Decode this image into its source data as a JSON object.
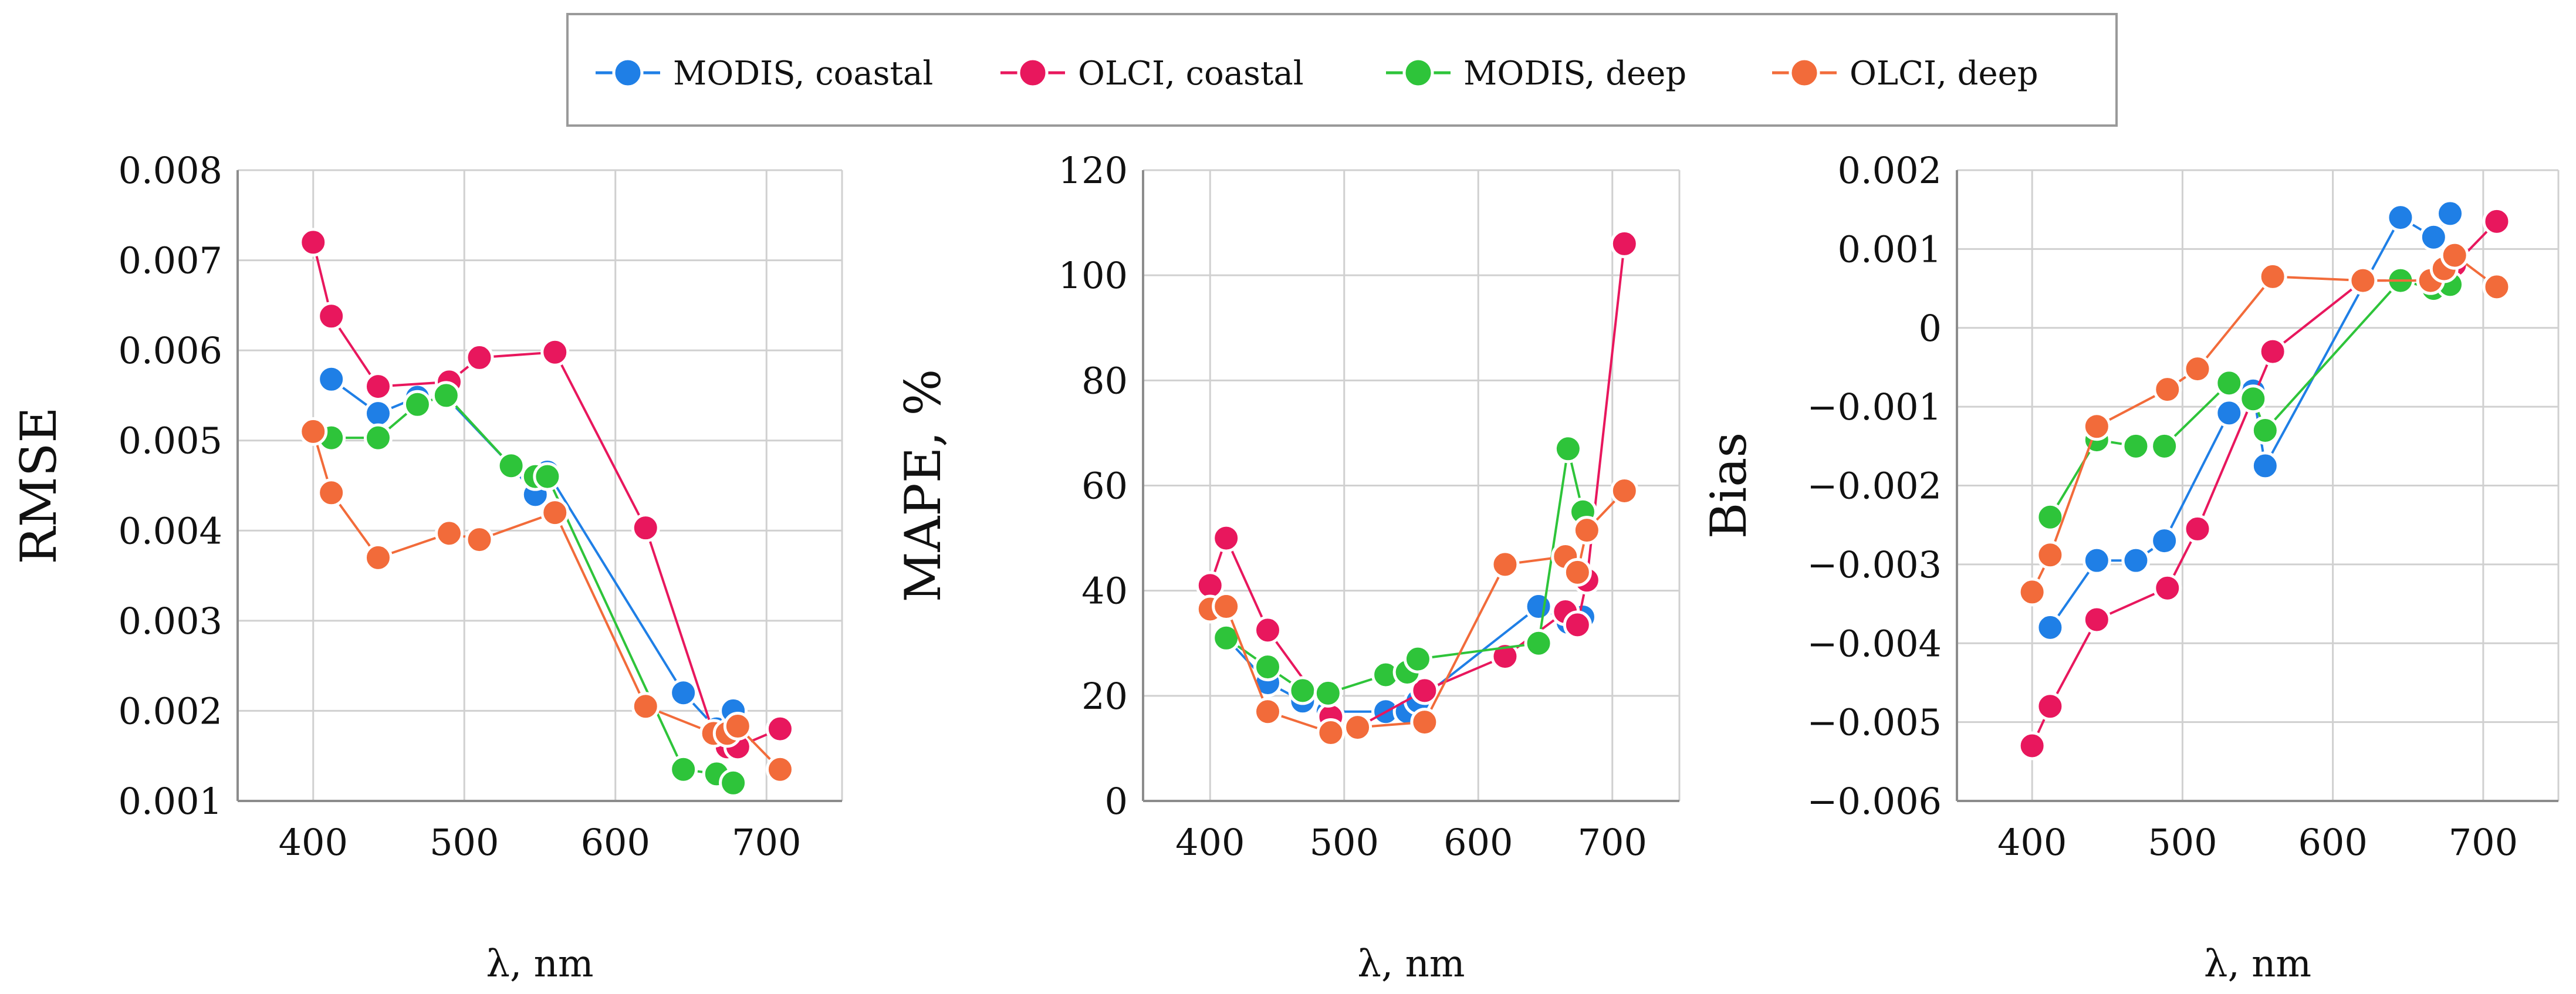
{
  "chart_data": [
    {
      "type": "line",
      "title": "",
      "xlabel": "λ, nm",
      "ylabel": "RMSE",
      "xlim": [
        350,
        750
      ],
      "ylim": [
        0.001,
        0.008
      ],
      "xticks": [
        400,
        500,
        600,
        700
      ],
      "xtick_labels": [
        "400",
        "500",
        "600",
        "700"
      ],
      "yticks": [
        0.001,
        0.002,
        0.003,
        0.004,
        0.005,
        0.006,
        0.007,
        0.008
      ],
      "ytick_labels": [
        "0.001",
        "0.002",
        "0.003",
        "0.004",
        "0.005",
        "0.006",
        "0.007",
        "0.008"
      ],
      "grid": true,
      "series": [
        {
          "name": "MODIS, coastal",
          "color": "#1f7fe6",
          "x": [
            412,
            443,
            469,
            488,
            531,
            547,
            555,
            645,
            667,
            678
          ],
          "y": [
            0.00568,
            0.0053,
            0.00548,
            0.00548,
            0.00472,
            0.0044,
            0.00465,
            0.0022,
            0.0018,
            0.002
          ]
        },
        {
          "name": "OLCI, coastal",
          "color": "#e8175d",
          "x": [
            400,
            412,
            443,
            490,
            510,
            560,
            620,
            665,
            674,
            681,
            709
          ],
          "y": [
            0.0072,
            0.00638,
            0.0056,
            0.00565,
            0.00592,
            0.00598,
            0.00403,
            0.00175,
            0.0016,
            0.0016,
            0.0018
          ]
        },
        {
          "name": "MODIS, deep",
          "color": "#2ec43a",
          "x": [
            412,
            443,
            469,
            488,
            531,
            547,
            555,
            645,
            667,
            678
          ],
          "y": [
            0.00503,
            0.00503,
            0.0054,
            0.0055,
            0.00472,
            0.0046,
            0.0046,
            0.00135,
            0.0013,
            0.0012
          ]
        },
        {
          "name": "OLCI, deep",
          "color": "#f26b3a",
          "x": [
            400,
            412,
            443,
            490,
            510,
            560,
            620,
            665,
            674,
            681,
            709
          ],
          "y": [
            0.0051,
            0.00442,
            0.0037,
            0.00397,
            0.0039,
            0.0042,
            0.00205,
            0.00175,
            0.00175,
            0.00183,
            0.00135
          ]
        }
      ]
    },
    {
      "type": "line",
      "title": "",
      "xlabel": "λ, nm",
      "ylabel": "MAPE, %",
      "xlim": [
        350,
        750
      ],
      "ylim": [
        0,
        120
      ],
      "xticks": [
        400,
        500,
        600,
        700
      ],
      "xtick_labels": [
        "400",
        "500",
        "600",
        "700"
      ],
      "yticks": [
        0,
        20,
        40,
        60,
        80,
        100,
        120
      ],
      "ytick_labels": [
        "0",
        "20",
        "40",
        "60",
        "80",
        "100",
        "120"
      ],
      "grid": true,
      "series": [
        {
          "name": "MODIS, coastal",
          "color": "#1f7fe6",
          "x": [
            412,
            443,
            469,
            488,
            531,
            547,
            555,
            645,
            667,
            678
          ],
          "y": [
            31,
            22.5,
            19,
            17,
            17,
            17,
            19,
            37,
            34,
            35
          ]
        },
        {
          "name": "OLCI, coastal",
          "color": "#e8175d",
          "x": [
            400,
            412,
            443,
            490,
            510,
            560,
            620,
            665,
            674,
            681,
            709
          ],
          "y": [
            41,
            50,
            32.5,
            16,
            14,
            21,
            27.5,
            36,
            33.5,
            42,
            106
          ]
        },
        {
          "name": "MODIS, deep",
          "color": "#2ec43a",
          "x": [
            412,
            443,
            469,
            488,
            531,
            547,
            555,
            645,
            667,
            678
          ],
          "y": [
            31,
            25.5,
            21,
            20.5,
            24,
            24.5,
            27,
            30,
            67,
            55
          ]
        },
        {
          "name": "OLCI, deep",
          "color": "#f26b3a",
          "x": [
            400,
            412,
            443,
            490,
            510,
            560,
            620,
            665,
            674,
            681,
            709
          ],
          "y": [
            36.5,
            37,
            17,
            13,
            14,
            15,
            45,
            46.5,
            43.5,
            51.5,
            59
          ]
        }
      ]
    },
    {
      "type": "line",
      "title": "",
      "xlabel": "λ, nm",
      "ylabel": "Bias",
      "xlim": [
        350,
        750
      ],
      "ylim": [
        -0.006,
        0.002
      ],
      "xticks": [
        400,
        500,
        600,
        700
      ],
      "xtick_labels": [
        "400",
        "500",
        "600",
        "700"
      ],
      "yticks": [
        -0.006,
        -0.005,
        -0.004,
        -0.003,
        -0.002,
        -0.001,
        0,
        0.001,
        0.002
      ],
      "ytick_labels": [
        "−0.006",
        "−0.005",
        "−0.004",
        "−0.003",
        "−0.002",
        "−0.001",
        "0",
        "0.001",
        "0.002"
      ],
      "grid": true,
      "series": [
        {
          "name": "MODIS, coastal",
          "color": "#1f7fe6",
          "x": [
            412,
            443,
            469,
            488,
            531,
            547,
            555,
            645,
            667,
            678
          ],
          "y": [
            -0.0038,
            -0.00295,
            -0.00295,
            -0.0027,
            -0.00108,
            -0.0008,
            -0.00175,
            0.0014,
            0.00115,
            0.00145
          ]
        },
        {
          "name": "OLCI, coastal",
          "color": "#e8175d",
          "x": [
            400,
            412,
            443,
            490,
            510,
            560,
            620,
            665,
            674,
            681,
            709
          ],
          "y": [
            -0.0053,
            -0.0048,
            -0.0037,
            -0.0033,
            -0.00255,
            -0.0003,
            0.0006,
            0.0006,
            0.0007,
            0.0008,
            0.00135
          ]
        },
        {
          "name": "MODIS, deep",
          "color": "#2ec43a",
          "x": [
            412,
            443,
            469,
            488,
            531,
            547,
            555,
            645,
            667,
            678
          ],
          "y": [
            -0.0024,
            -0.00142,
            -0.0015,
            -0.0015,
            -0.0007,
            -0.0009,
            -0.0013,
            0.0006,
            0.0005,
            0.00055
          ]
        },
        {
          "name": "OLCI, deep",
          "color": "#f26b3a",
          "x": [
            400,
            412,
            443,
            490,
            510,
            560,
            620,
            665,
            674,
            681,
            709
          ],
          "y": [
            -0.00335,
            -0.00288,
            -0.00125,
            -0.00078,
            -0.00052,
            0.00065,
            0.0006,
            0.0006,
            0.00075,
            0.00092,
            0.00052
          ]
        }
      ]
    }
  ],
  "legend": {
    "placement": "top-center",
    "items": [
      {
        "label": "MODIS, coastal",
        "color": "#1f7fe6"
      },
      {
        "label": "OLCI, coastal",
        "color": "#e8175d"
      },
      {
        "label": "MODIS, deep",
        "color": "#2ec43a"
      },
      {
        "label": "OLCI, deep",
        "color": "#f26b3a"
      }
    ]
  }
}
